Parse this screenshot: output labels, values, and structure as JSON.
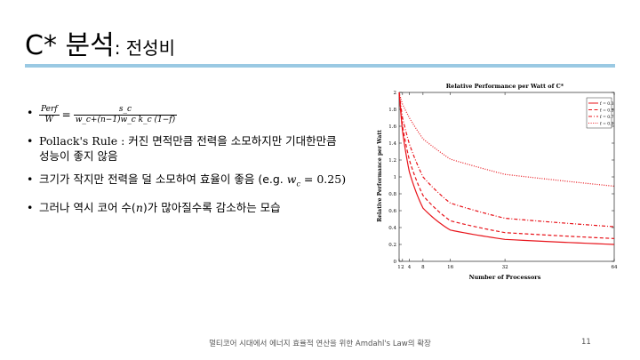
{
  "slide": {
    "title_main": "C* 분석",
    "title_sub": ": 전성비",
    "footer": "멀티코어 시대에서 에너지 효율적 연산을 위한 Amdahl's Law의 확장",
    "page_number": "11"
  },
  "formula": {
    "lhs_num": "Perf",
    "lhs_den": "W",
    "rhs_num": "s_c",
    "rhs_den": "w_c+(n−1)w_c k_c (1−f)"
  },
  "bullets": {
    "b2_line1": "Pollack's Rule : 커진 면적만큼 전력을 소모하지만 기대한만큼",
    "b2_line2": "성능이 좋지 않음",
    "b3_text": "크기가 작지만 전력을 덜 소모하여 효율이 좋음 (e.g. ",
    "b3_math": "w",
    "b3_sub": "c",
    "b3_tail": " = 0.25)",
    "b4_pre": "그러나 역시 코어 수(",
    "b4_math": "n",
    "b4_post": ")가 많아질수록 감소하는 모습"
  },
  "chart_data": {
    "type": "line",
    "title": "Relative Performance per Watt of C*",
    "xlabel": "Number of Processors",
    "ylabel": "Relative Performance per Watt",
    "xlim": [
      1,
      64
    ],
    "ylim": [
      0,
      2
    ],
    "xticks": [
      1,
      2,
      4,
      8,
      16,
      32,
      64
    ],
    "xtick_labels": [
      "1",
      "2",
      "4",
      "8",
      "16",
      "32",
      "64"
    ],
    "yticks": [
      0,
      0.2,
      0.4,
      0.6,
      0.8,
      1,
      1.2,
      1.4,
      1.6,
      1.8,
      2
    ],
    "grid": false,
    "legend_position": "top-right",
    "color": "#e8131a",
    "x": [
      1,
      2,
      4,
      8,
      16,
      32,
      64
    ],
    "series": [
      {
        "name": "f = 0.3",
        "style": "solid",
        "values": [
          2.0,
          1.54,
          1.06,
          0.63,
          0.37,
          0.26,
          0.2
        ]
      },
      {
        "name": "f = 0.5",
        "style": "dashed",
        "values": [
          2.0,
          1.6,
          1.2,
          0.78,
          0.48,
          0.34,
          0.27
        ]
      },
      {
        "name": "f = 0.7",
        "style": "dashdot",
        "values": [
          2.0,
          1.7,
          1.39,
          1.0,
          0.69,
          0.51,
          0.41
        ]
      },
      {
        "name": "f = 0.9",
        "style": "dotted",
        "values": [
          2.0,
          1.86,
          1.7,
          1.45,
          1.21,
          1.03,
          0.89
        ]
      }
    ]
  }
}
